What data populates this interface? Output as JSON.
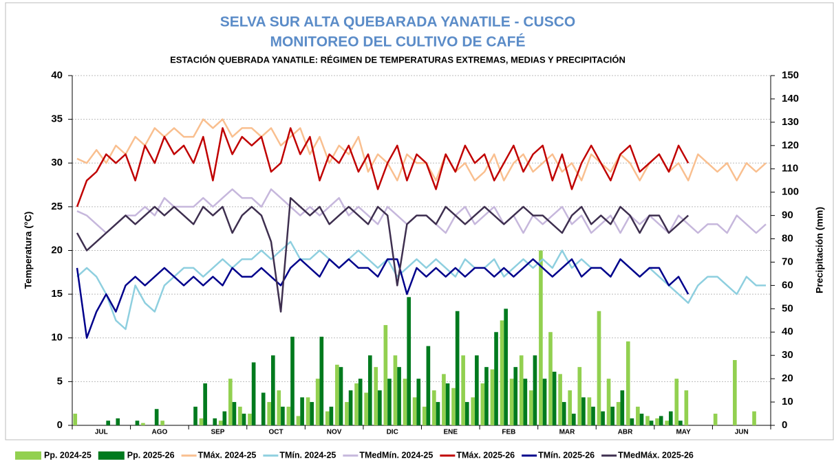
{
  "chart_data": {
    "type": "line",
    "title": "SELVA SUR ALTA QUEBARADA YANATILE - CUSCO",
    "subtitle": "MONITOREO DEL CULTIVO DE CAFÉ",
    "caption": "ESTACIÓN QUEBRADA YANATILE: RÉGIMEN DE TEMPERATURAS EXTREMAS, MEDIAS Y PRECIPITACIÓN",
    "y_label": "Temperatura (°C)",
    "y2_label": "Precipitación (mm)",
    "ylim": [
      0,
      40
    ],
    "yticks": [
      0,
      5,
      10,
      15,
      20,
      25,
      30,
      35,
      40
    ],
    "y2lim": [
      0,
      150
    ],
    "y2ticks": [
      0,
      10,
      20,
      30,
      40,
      50,
      60,
      70,
      80,
      90,
      100,
      110,
      120,
      130,
      140,
      150
    ],
    "grid": true,
    "legend": "bottom",
    "categories": [
      null,
      null,
      "JUL",
      null,
      null,
      null,
      null,
      null,
      "AGO",
      null,
      null,
      null,
      null,
      null,
      "SEP",
      null,
      null,
      null,
      null,
      null,
      "OCT",
      null,
      null,
      null,
      null,
      null,
      "NOV",
      null,
      null,
      null,
      null,
      null,
      "DIC",
      null,
      null,
      null,
      null,
      null,
      "ENE",
      null,
      null,
      null,
      null,
      null,
      "FEB",
      null,
      null,
      null,
      null,
      null,
      "MAR",
      null,
      null,
      null,
      null,
      null,
      "ABR",
      null,
      null,
      null,
      null,
      null,
      "MAY",
      null,
      null,
      null,
      null,
      null,
      "JUN",
      null,
      null,
      null
    ],
    "series": [
      {
        "name": "Pp. 2024-25",
        "type": "bar",
        "axis": "y2",
        "color": "#92d050",
        "values": [
          5,
          0,
          0,
          0,
          0,
          0,
          0,
          1,
          0,
          2,
          0,
          0,
          0,
          3,
          0,
          2,
          20,
          8,
          5,
          0,
          10,
          15,
          8,
          4,
          12,
          20,
          6,
          26,
          10,
          18,
          14,
          25,
          43,
          30,
          20,
          12,
          8,
          15,
          22,
          16,
          30,
          12,
          18,
          24,
          45,
          20,
          30,
          15,
          75,
          40,
          22,
          15,
          25,
          12,
          49,
          20,
          10,
          36,
          8,
          4,
          3,
          2,
          20,
          15,
          0,
          0,
          5,
          0,
          28,
          0,
          6,
          0
        ]
      },
      {
        "name": "Pp. 2025-26",
        "type": "bar",
        "axis": "y2",
        "color": "#007a1e",
        "values": [
          0,
          0,
          0,
          2,
          3,
          0,
          2,
          0,
          7,
          0,
          0,
          0,
          8,
          18,
          3,
          6,
          10,
          5,
          27,
          14,
          30,
          8,
          38,
          12,
          10,
          38,
          8,
          25,
          15,
          20,
          30,
          15,
          20,
          25,
          55,
          20,
          34,
          10,
          18,
          49,
          10,
          30,
          25,
          40,
          50,
          25,
          20,
          30,
          20,
          23,
          10,
          5,
          12,
          8,
          6,
          8,
          15,
          3,
          5,
          2,
          4,
          6,
          2,
          0,
          null,
          null,
          null,
          null,
          null,
          null,
          null,
          null
        ]
      },
      {
        "name": "TMáx. 2024-25",
        "type": "line",
        "color": "#f9bf8f",
        "values": [
          30.5,
          30,
          31.5,
          30,
          32,
          31,
          33,
          32,
          34,
          33,
          34,
          33,
          33,
          35,
          34,
          35,
          33,
          34,
          34,
          33,
          34,
          32,
          33,
          34,
          31,
          33,
          30,
          32,
          31,
          33,
          29,
          31,
          30,
          28,
          31,
          30,
          30,
          28,
          31,
          29,
          30,
          28,
          29,
          31,
          28,
          30,
          31,
          29,
          30,
          31,
          29,
          30,
          28,
          31,
          30,
          29,
          31,
          30,
          28,
          30,
          31,
          29,
          30,
          28,
          31,
          30,
          29,
          30,
          28,
          30,
          29,
          30
        ]
      },
      {
        "name": "TMín. 2024-25",
        "type": "line",
        "color": "#8ecfdf",
        "values": [
          17,
          18,
          17,
          15,
          12,
          11,
          16,
          14,
          13,
          16,
          17,
          18,
          18,
          17,
          18,
          19,
          18,
          19,
          19,
          20,
          19,
          20,
          21,
          19,
          19,
          20,
          19,
          18,
          19,
          20,
          19,
          18,
          19,
          17,
          18,
          19,
          18,
          19,
          18,
          17,
          19,
          18,
          18,
          19,
          17,
          18,
          19,
          18,
          19,
          18,
          20,
          18,
          19,
          18,
          18,
          17,
          19,
          18,
          17,
          18,
          17,
          16,
          15,
          14,
          16,
          17,
          17,
          16,
          15,
          17,
          16,
          16
        ]
      },
      {
        "name": "TMedMín. 2024-25",
        "type": "line",
        "color": "#c6b7dc",
        "values": [
          24.5,
          24,
          23,
          22,
          23,
          24,
          24,
          25,
          24,
          26,
          25,
          25,
          25,
          26,
          25,
          26,
          27,
          26,
          26,
          25,
          27,
          26,
          25,
          24,
          25,
          24,
          25,
          26,
          24,
          25,
          24,
          23,
          25,
          24,
          23,
          24,
          24,
          23,
          22,
          24,
          25,
          23,
          24,
          25,
          23,
          24,
          22,
          24,
          23,
          24,
          25,
          23,
          24,
          22,
          23,
          24,
          22,
          24,
          23,
          24,
          23,
          22,
          24,
          23,
          22,
          23,
          23,
          22,
          24,
          23,
          22,
          23
        ]
      },
      {
        "name": "TMáx. 2025-26",
        "type": "line",
        "color": "#c00000",
        "values": [
          25,
          28,
          29,
          31,
          30,
          31,
          28,
          32,
          30,
          33,
          31,
          32,
          30,
          33,
          28,
          34,
          31,
          33,
          32,
          33,
          29,
          30,
          34,
          31,
          33,
          28,
          31,
          30,
          32,
          29,
          31,
          27,
          30,
          32,
          28,
          31,
          30,
          27,
          31,
          29,
          32,
          30,
          31,
          28,
          30,
          32,
          29,
          31,
          32,
          28,
          31,
          27,
          30,
          32,
          30,
          28,
          31,
          32,
          29,
          30,
          31,
          29,
          32,
          30,
          null,
          null,
          null,
          null,
          null,
          null,
          null,
          null
        ]
      },
      {
        "name": "TMín. 2025-26",
        "type": "line",
        "color": "#00008b",
        "values": [
          18,
          10,
          13,
          15,
          13,
          16,
          17,
          16,
          17,
          18,
          17,
          16,
          17,
          16,
          17,
          16,
          18,
          17,
          17,
          18,
          17,
          16,
          18,
          19,
          18,
          17,
          19,
          18,
          19,
          18,
          18,
          17,
          19,
          19,
          15,
          18,
          17,
          18,
          17,
          18,
          17,
          18,
          18,
          17,
          18,
          17,
          18,
          19,
          18,
          17,
          18,
          19,
          17,
          18,
          18,
          17,
          19,
          18,
          17,
          18,
          18,
          16,
          17,
          15,
          null,
          null,
          null,
          null,
          null,
          null,
          null,
          null
        ]
      },
      {
        "name": "TMedMáx. 2025-26",
        "type": "line",
        "color": "#3e2f4f",
        "values": [
          22,
          20,
          21,
          22,
          23,
          24,
          23,
          24,
          25,
          24,
          25,
          24,
          23,
          25,
          24,
          25,
          22,
          24,
          25,
          24,
          21,
          13,
          26,
          25,
          24,
          25,
          23,
          24,
          25,
          24,
          23,
          25,
          24,
          16,
          23,
          24,
          24,
          23,
          25,
          24,
          23,
          24,
          25,
          24,
          23,
          24,
          25,
          24,
          24,
          23,
          22,
          24,
          25,
          23,
          24,
          23,
          25,
          24,
          22,
          24,
          24,
          22,
          23,
          24,
          null,
          null,
          null,
          null,
          null,
          null,
          null,
          null
        ]
      }
    ]
  }
}
